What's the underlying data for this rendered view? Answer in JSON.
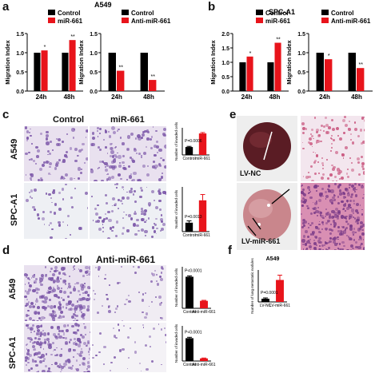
{
  "panels": {
    "a": {
      "letter": "a",
      "title": "A549",
      "legend_left": [
        "Control",
        "miR-661"
      ],
      "legend_right": [
        "Control",
        "Anti-miR-661"
      ],
      "ylabel": "Migration Index"
    },
    "b": {
      "letter": "b",
      "title": "SPC-A1",
      "legend_left": [
        "Control",
        "miR-661"
      ],
      "legend_right": [
        "Control",
        "Anti-miR-661"
      ],
      "ylabel": "Migration Index"
    },
    "c": {
      "letter": "c",
      "col1": "Control",
      "col2": "miR-661",
      "row1": "A549",
      "row2": "SPC-A1"
    },
    "d": {
      "letter": "d",
      "col1": "Control",
      "col2": "Anti-miR-661",
      "row1": "A549",
      "row2": "SPC-A1"
    },
    "e": {
      "letter": "e",
      "label1": "LV-NC",
      "label2": "LV-miR-661"
    },
    "f": {
      "letter": "f",
      "title": "A549"
    }
  },
  "colors": {
    "control": "#000000",
    "treat": "#e8141b",
    "stain": "#7b56a8",
    "tissue": "#c9567e"
  },
  "chart_data": [
    {
      "id": "a-left",
      "type": "bar",
      "categories": [
        "24h",
        "48h"
      ],
      "series": [
        {
          "name": "Control",
          "values": [
            1.0,
            1.0
          ]
        },
        {
          "name": "miR-661",
          "values": [
            1.06,
            1.33
          ]
        }
      ],
      "ylim": [
        0,
        1.5
      ],
      "yticks": [
        "0.0",
        "0.5",
        "1.0",
        "1.5"
      ],
      "sig": [
        "*",
        "**"
      ],
      "ylabel": "Migration Index"
    },
    {
      "id": "a-right",
      "type": "bar",
      "categories": [
        "24h",
        "48h"
      ],
      "series": [
        {
          "name": "Control",
          "values": [
            1.0,
            1.0
          ]
        },
        {
          "name": "Anti-miR-661",
          "values": [
            0.53,
            0.29
          ]
        }
      ],
      "ylim": [
        0,
        1.5
      ],
      "yticks": [
        "0.0",
        "0.5",
        "1.0",
        "1.5"
      ],
      "sig": [
        "**",
        "**"
      ],
      "ylabel": "Migration Index"
    },
    {
      "id": "b-left",
      "type": "bar",
      "categories": [
        "24h",
        "48h"
      ],
      "series": [
        {
          "name": "Control",
          "values": [
            1.0,
            1.0
          ]
        },
        {
          "name": "miR-661",
          "values": [
            1.2,
            1.68
          ]
        }
      ],
      "ylim": [
        0,
        2.0
      ],
      "yticks": [
        "0.0",
        "0.5",
        "1.0",
        "1.5",
        "2.0"
      ],
      "sig": [
        "*",
        "**"
      ],
      "ylabel": "Migration Index"
    },
    {
      "id": "b-right",
      "type": "bar",
      "categories": [
        "24h",
        "48h"
      ],
      "series": [
        {
          "name": "Control",
          "values": [
            1.0,
            1.0
          ]
        },
        {
          "name": "Anti-miR-661",
          "values": [
            0.83,
            0.6
          ]
        }
      ],
      "ylim": [
        0,
        1.5
      ],
      "yticks": [
        "0.0",
        "0.5",
        "1.0",
        "1.5"
      ],
      "sig": [
        "*",
        "**"
      ],
      "ylabel": "Migration Index"
    },
    {
      "id": "c-top",
      "type": "bar",
      "categories": [
        "Control",
        "miR-661"
      ],
      "values": [
        35,
        95
      ],
      "errors": [
        3,
        4
      ],
      "ylim": [
        0,
        120
      ],
      "ylabel": "Number of invaded cells",
      "pvalue": "P=0.0006"
    },
    {
      "id": "c-bottom",
      "type": "bar",
      "categories": [
        "Control",
        "miR-661"
      ],
      "values": [
        20,
        70
      ],
      "errors": [
        4,
        13
      ],
      "ylim": [
        0,
        100
      ],
      "ylabel": "Number of invaded cells",
      "pvalue": "P=0.0013"
    },
    {
      "id": "d-top",
      "type": "bar",
      "categories": [
        "Control",
        "Anti-miR-661"
      ],
      "values": [
        190,
        45
      ],
      "errors": [
        5,
        3
      ],
      "ylim": [
        0,
        250
      ],
      "ylabel": "Number of invaded cells",
      "pvalue": "P<0.0001"
    },
    {
      "id": "d-bottom",
      "type": "bar",
      "categories": [
        "Control",
        "Anti-miR-661"
      ],
      "values": [
        130,
        15
      ],
      "errors": [
        5,
        2
      ],
      "ylim": [
        0,
        200
      ],
      "ylabel": "Number of invaded cells",
      "pvalue": "P<0.0001"
    },
    {
      "id": "f",
      "type": "bar",
      "title": "A549",
      "categories": [
        "LV-NC",
        "LV-miR-661"
      ],
      "values": [
        8,
        55
      ],
      "errors": [
        2,
        12
      ],
      "ylim": [
        0,
        80
      ],
      "ylabel": "Number of lung metastatic nodules",
      "pvalue": "P=0.0001"
    }
  ]
}
